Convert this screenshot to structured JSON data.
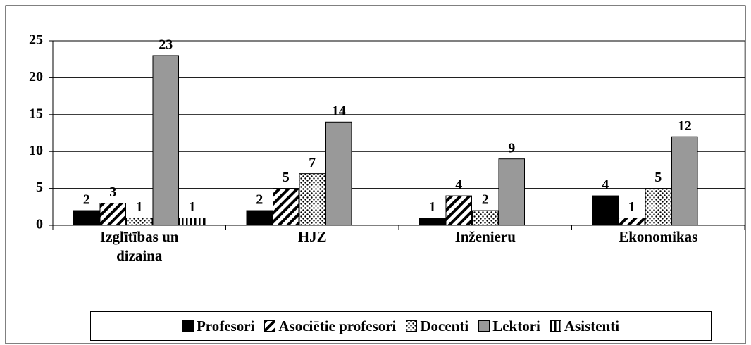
{
  "chart_data": {
    "type": "bar",
    "categories": [
      "Izglītības un dizaina",
      "HJZ",
      "Inženieru",
      "Ekonomikas"
    ],
    "series": [
      {
        "name": "Profesori",
        "color": "#000000",
        "pattern": "solid",
        "values": [
          2,
          2,
          1,
          4
        ]
      },
      {
        "name": "Asociētie profesori",
        "color": "#000000",
        "pattern": "diagonal",
        "values": [
          3,
          5,
          4,
          1
        ]
      },
      {
        "name": "Docenti",
        "color": "#000000",
        "pattern": "dots",
        "values": [
          1,
          7,
          2,
          5
        ]
      },
      {
        "name": "Lektori",
        "color": "#999999",
        "pattern": "solid",
        "values": [
          23,
          14,
          9,
          12
        ]
      },
      {
        "name": "Asistenti",
        "color": "#000000",
        "pattern": "vertical",
        "values": [
          1,
          null,
          null,
          null
        ]
      }
    ],
    "ylim": [
      0,
      25
    ],
    "yticks": [
      0,
      5,
      10,
      15,
      20,
      25
    ],
    "grid": true,
    "legend": "bottom"
  }
}
